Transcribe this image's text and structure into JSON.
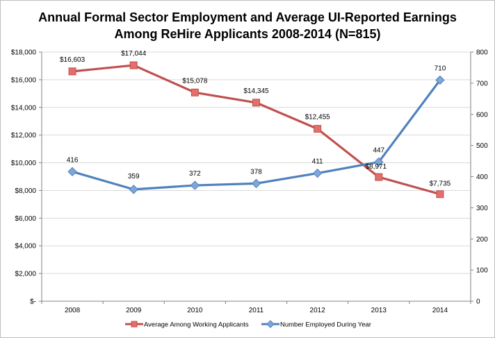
{
  "chart_data": {
    "type": "line",
    "title_lines": [
      "Annual Formal Sector Employment and Average UI-Reported Earnings",
      "Among ReHire Applicants 2008-2014 (N=815)"
    ],
    "categories": [
      "2008",
      "2009",
      "2010",
      "2011",
      "2012",
      "2013",
      "2014"
    ],
    "y_left": {
      "min": 0,
      "max": 18000,
      "step": 2000,
      "tick_labels": [
        "$-",
        "$2,000",
        "$4,000",
        "$6,000",
        "$8,000",
        "$10,000",
        "$12,000",
        "$14,000",
        "$16,000",
        "$18,000"
      ]
    },
    "y_right": {
      "min": 0,
      "max": 800,
      "step": 100,
      "tick_labels": [
        "0",
        "100",
        "200",
        "300",
        "400",
        "500",
        "600",
        "700",
        "800"
      ]
    },
    "series": [
      {
        "name": "Average Among Working Applicants",
        "axis": "left",
        "marker": "square",
        "color": "#c0504d",
        "marker_fill": "#e46e6a",
        "values": [
          16603,
          17044,
          15078,
          14345,
          12455,
          8971,
          7735
        ],
        "labels": [
          "$16,603",
          "$17,044",
          "$15,078",
          "$14,345",
          "$12,455",
          "$8,971",
          "$7,735"
        ]
      },
      {
        "name": "Number Employed During Year",
        "axis": "right",
        "marker": "diamond",
        "color": "#4f81bd",
        "marker_fill": "#7ea7d8",
        "values": [
          416,
          359,
          372,
          378,
          411,
          447,
          710
        ],
        "labels": [
          "416",
          "359",
          "372",
          "378",
          "411",
          "447",
          "710"
        ]
      }
    ],
    "grid": true,
    "legend_position": "bottom"
  }
}
